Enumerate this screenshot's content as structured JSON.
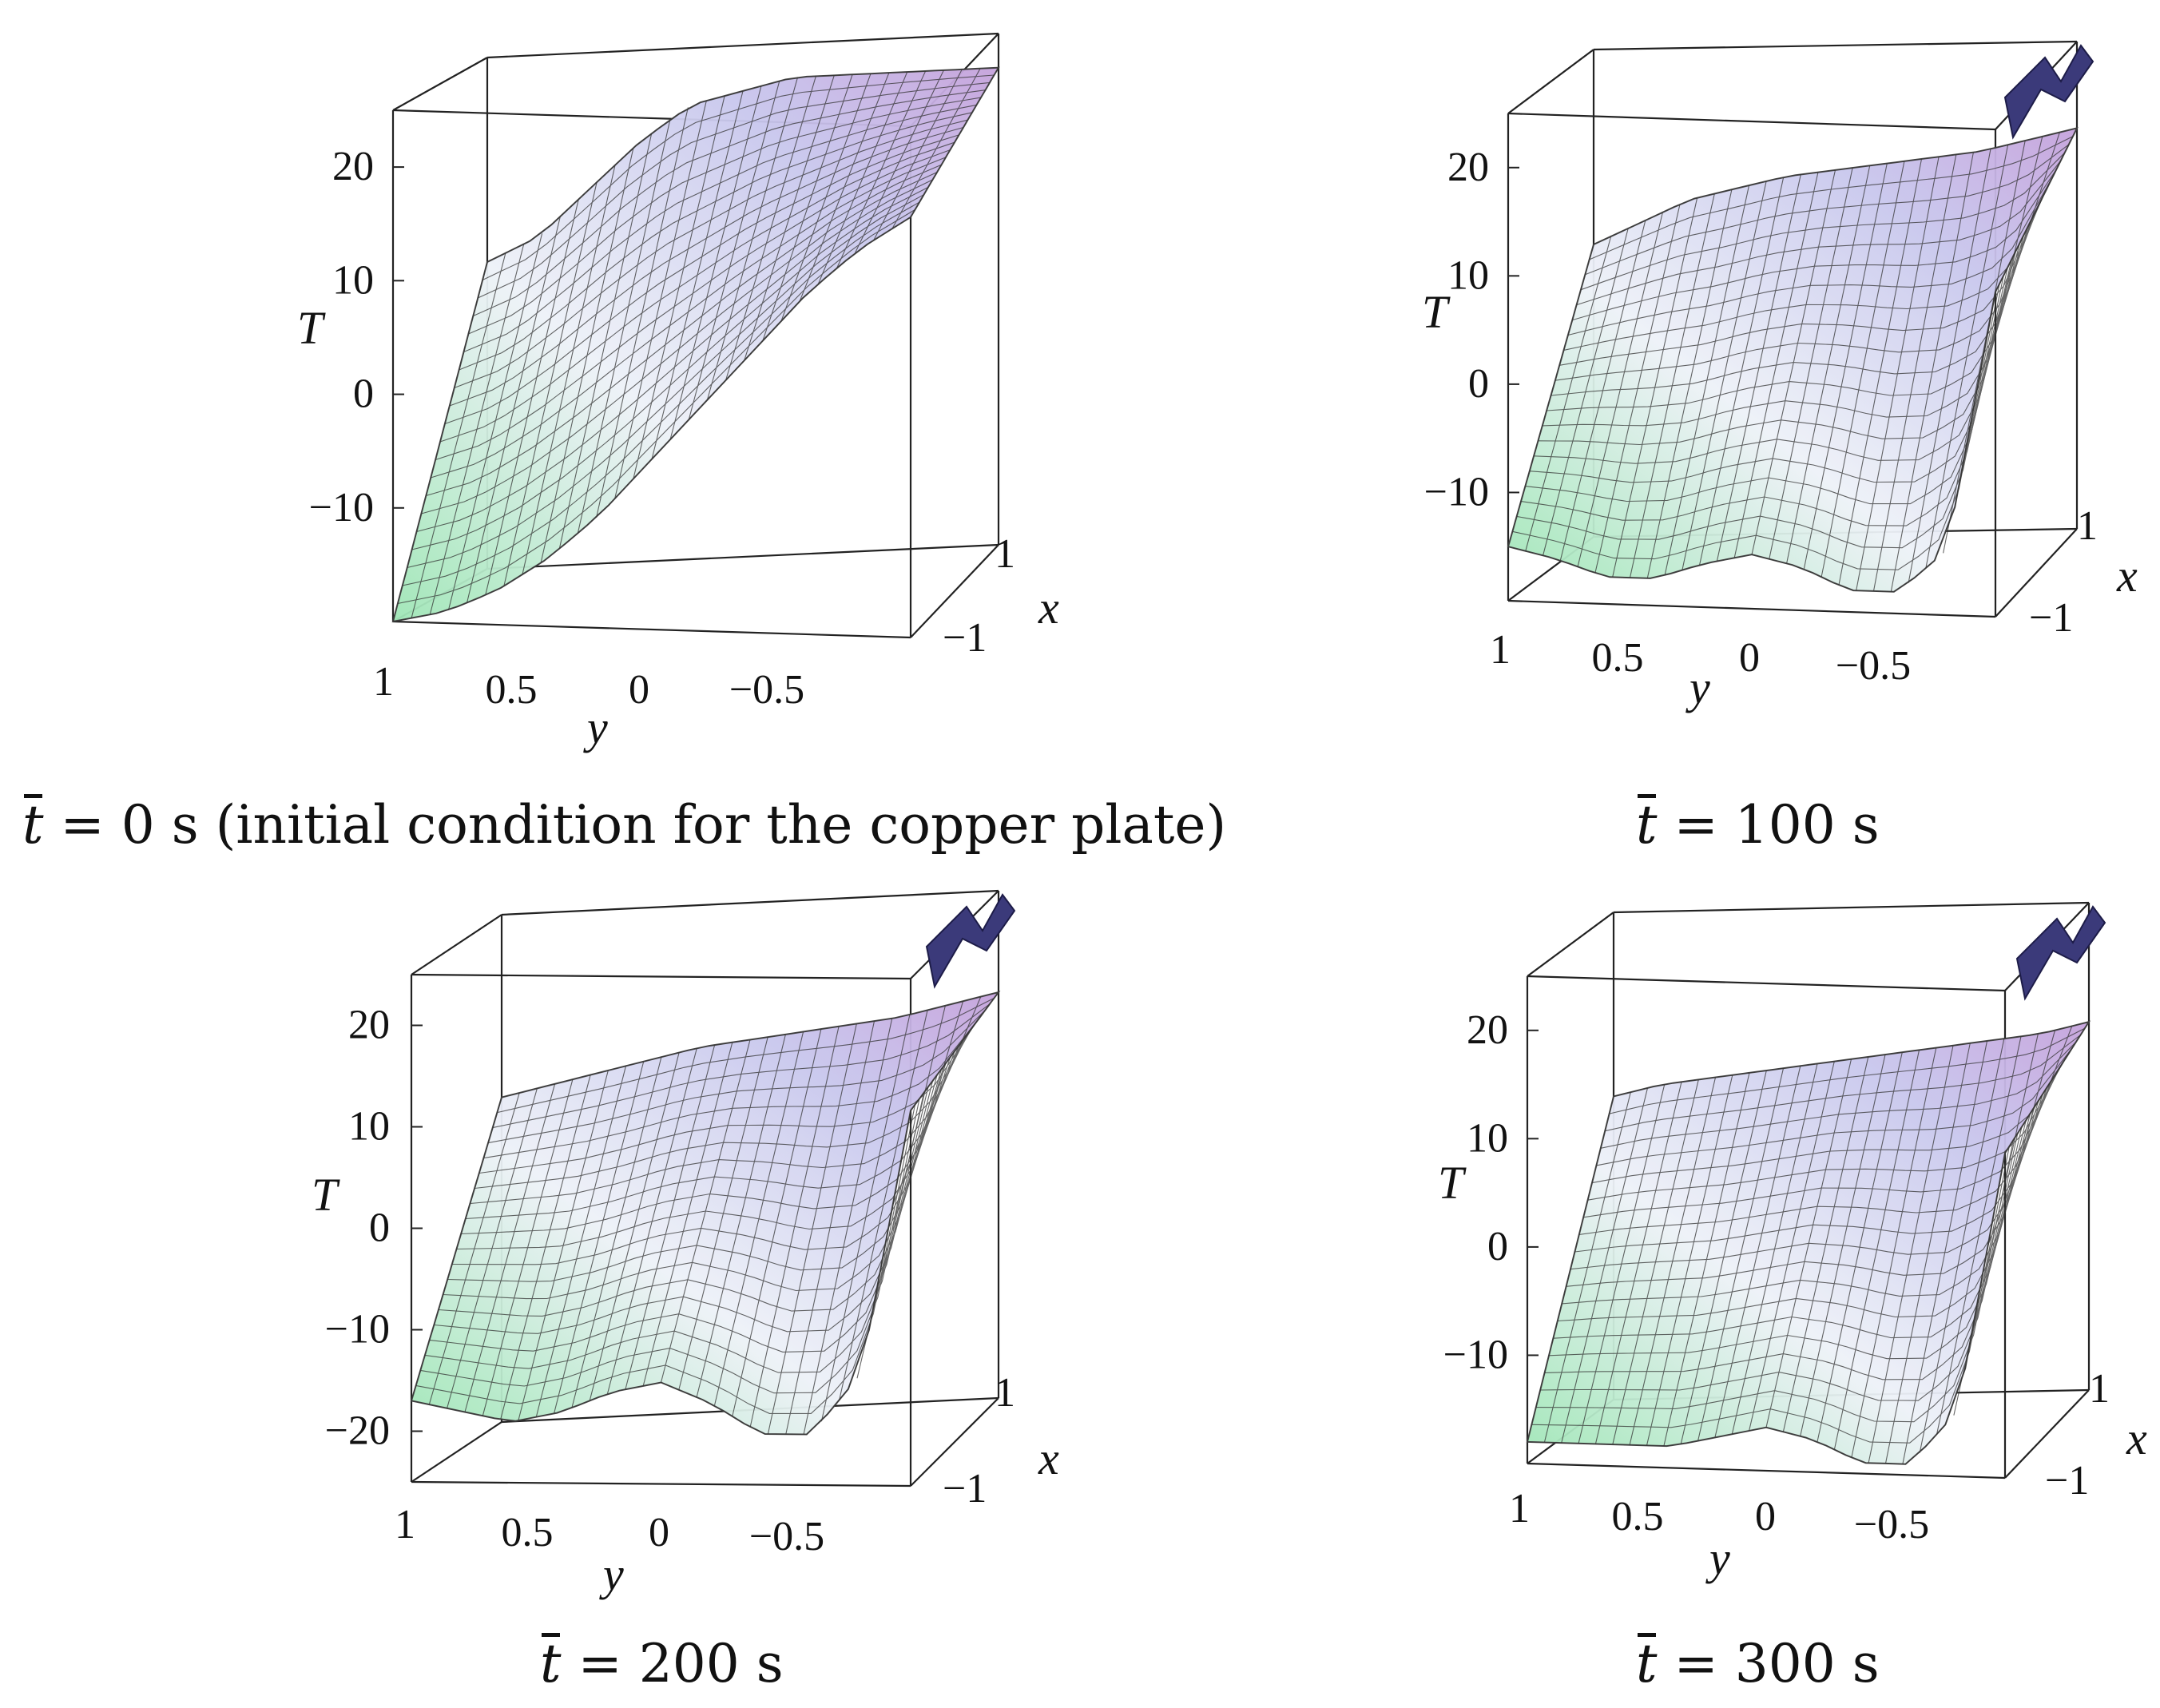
{
  "chart_data": [
    {
      "type": "surface3d",
      "panel_id": "a",
      "zlabel": "T",
      "ylabel": "y",
      "xlabel": "x",
      "z_ticks": [
        "20",
        "10",
        "0",
        "−10"
      ],
      "y_ticks": [
        "1",
        "0.5",
        "0",
        "−0.5"
      ],
      "x_ticks": [
        "1",
        "−1"
      ],
      "caption": {
        "symbol": "t",
        "rest": " = 0 s (initial condition for the copper plate)"
      },
      "zlim": [
        -20,
        25
      ],
      "front_profile": [
        -20,
        -19,
        -17,
        -14,
        -10,
        -5,
        0,
        5,
        10,
        14,
        17
      ],
      "back_profile": [
        7,
        9,
        13,
        17,
        20,
        21,
        22,
        22,
        22,
        22,
        22
      ],
      "spike": false
    },
    {
      "type": "surface3d",
      "panel_id": "b",
      "zlabel": "T",
      "ylabel": "y",
      "xlabel": "x",
      "z_ticks": [
        "20",
        "10",
        "0",
        "−10"
      ],
      "y_ticks": [
        "1",
        "0.5",
        "0",
        "−0.5"
      ],
      "x_ticks": [
        "1",
        "−1"
      ],
      "caption": {
        "symbol": "t",
        "rest": " = 100  s"
      },
      "zlim": [
        -20,
        25
      ],
      "front_profile": [
        -15,
        -16,
        -17.5,
        -17.5,
        -16,
        -15,
        -16,
        -18,
        -18,
        -14,
        10
      ],
      "back_profile": [
        7,
        9,
        11,
        12,
        13,
        13.5,
        14,
        14.5,
        15,
        16,
        17
      ],
      "spike": true
    },
    {
      "type": "surface3d",
      "panel_id": "c",
      "zlabel": "T",
      "ylabel": "y",
      "xlabel": "x",
      "z_ticks": [
        "20",
        "10",
        "0",
        "−10",
        "−20"
      ],
      "y_ticks": [
        "1",
        "0.5",
        "0",
        "−0.5"
      ],
      "x_ticks": [
        "1",
        "−1"
      ],
      "caption": {
        "symbol": "t",
        "rest": " = 200 s"
      },
      "zlim": [
        -25,
        25
      ],
      "front_profile": [
        -17,
        -18,
        -19,
        -18,
        -16,
        -15,
        -17,
        -20,
        -20,
        -14,
        12
      ],
      "back_profile": [
        7,
        8,
        9,
        10,
        11,
        11.5,
        12,
        12.5,
        13,
        14,
        15
      ],
      "spike": true
    },
    {
      "type": "surface3d",
      "panel_id": "d",
      "zlabel": "T",
      "ylabel": "y",
      "xlabel": "x",
      "z_ticks": [
        "20",
        "10",
        "0",
        "−10"
      ],
      "y_ticks": [
        "1",
        "0.5",
        "0",
        "−0.5"
      ],
      "x_ticks": [
        "1",
        "−1"
      ],
      "caption": {
        "symbol": "t",
        "rest": " = 300  s"
      },
      "zlim": [
        -20,
        25
      ],
      "front_profile": [
        -18,
        -18,
        -18,
        -18,
        -17,
        -16,
        -17,
        -19,
        -19,
        -14,
        10
      ],
      "back_profile": [
        8,
        9,
        9.5,
        10,
        10.5,
        11,
        11.5,
        12,
        12.5,
        13,
        14
      ],
      "spike": true
    }
  ]
}
